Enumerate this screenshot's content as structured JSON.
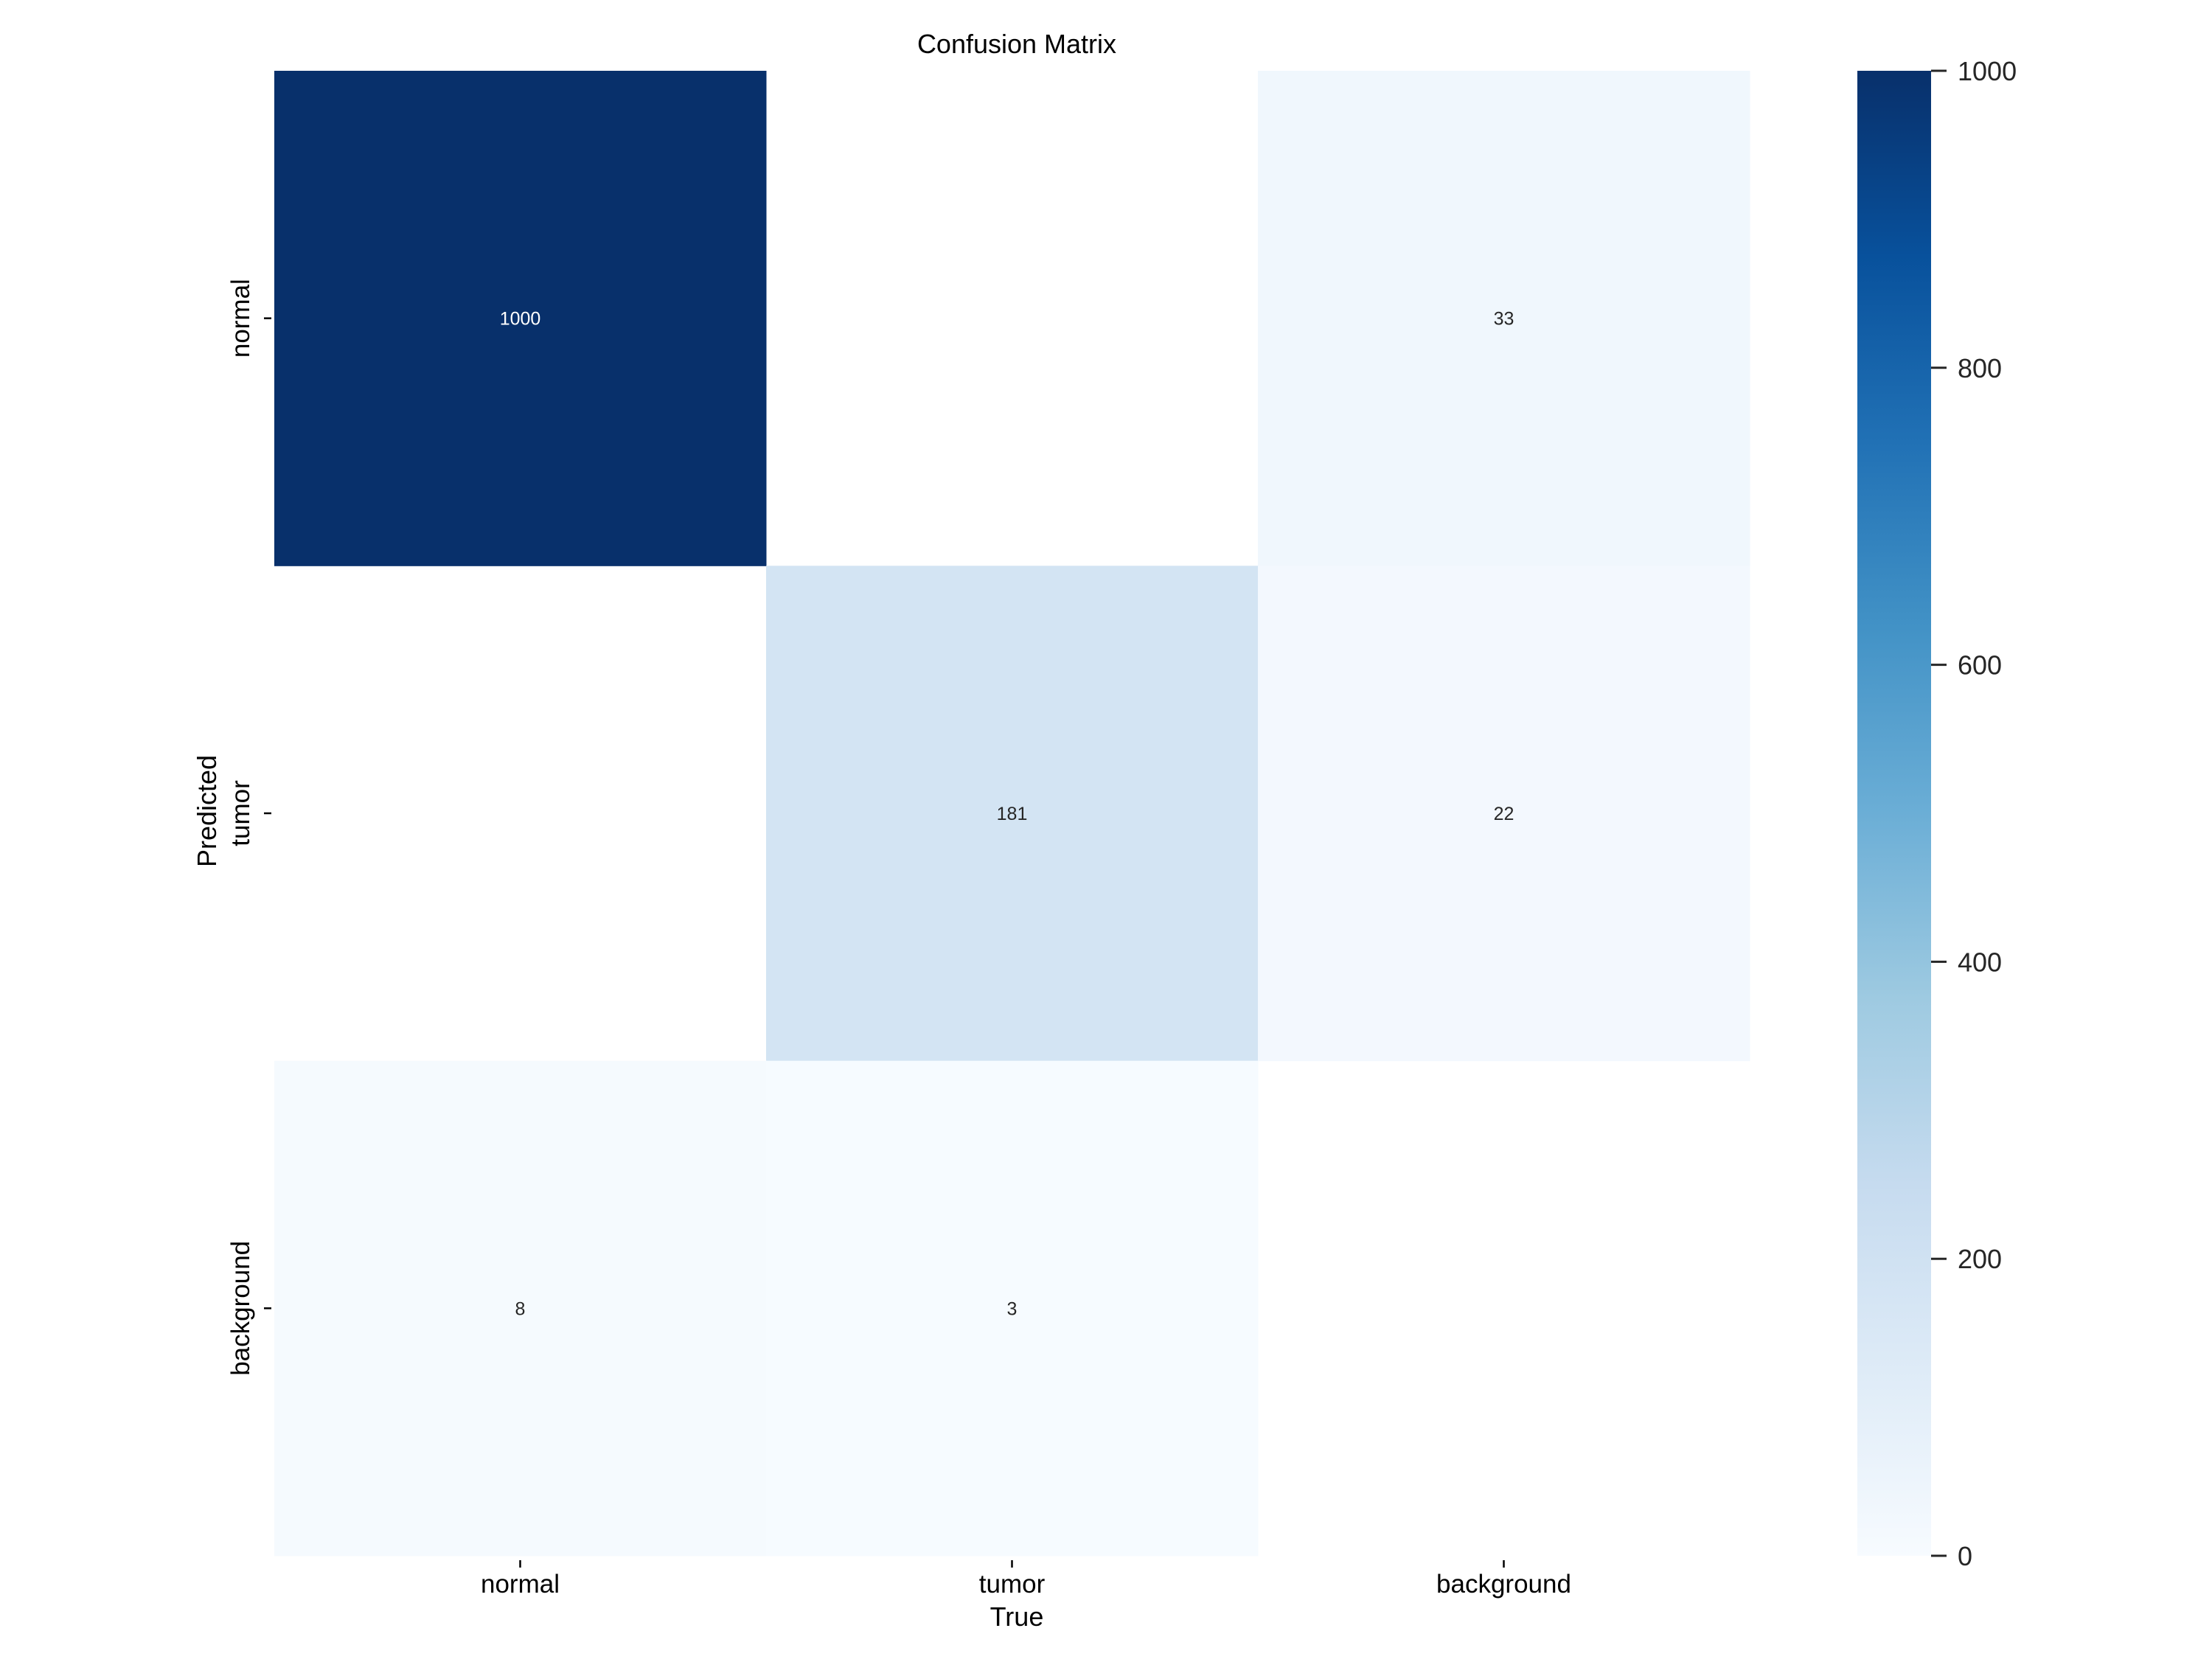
{
  "chart_data": {
    "type": "heatmap",
    "title": "Confusion Matrix",
    "xlabel": "True",
    "ylabel": "Predicted",
    "x_categories": [
      "normal",
      "tumor",
      "background"
    ],
    "y_categories": [
      "normal",
      "tumor",
      "background"
    ],
    "matrix": [
      [
        1000,
        null,
        33
      ],
      [
        null,
        181,
        22
      ],
      [
        8,
        3,
        null
      ]
    ],
    "colormap": "Blues",
    "colorbar": {
      "range": [
        0,
        1000
      ],
      "ticks": [
        0,
        200,
        400,
        600,
        800,
        1000
      ],
      "tick_labels": [
        "0",
        "200",
        "400",
        "600",
        "800",
        "1000"
      ]
    },
    "grid": false
  }
}
